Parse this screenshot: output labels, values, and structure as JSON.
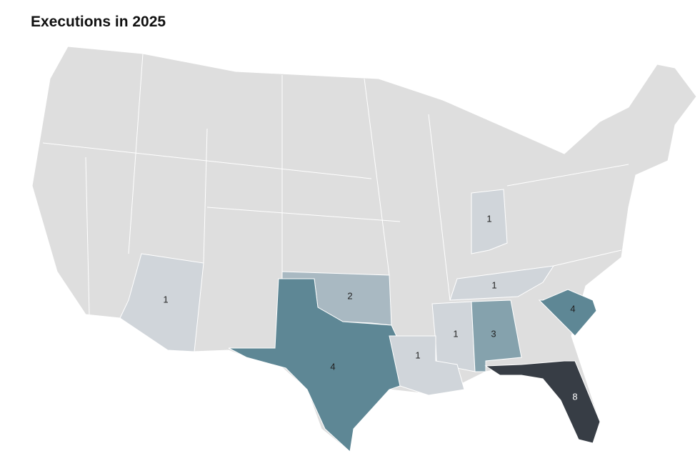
{
  "chart_data": {
    "type": "choropleth",
    "title": "Executions in 2025",
    "regions": [
      {
        "value": 1,
        "color": "#d0d5da"
      },
      {
        "value": 1,
        "color": "#d0d5da"
      },
      {
        "value": 2,
        "color": "#a9b9c2"
      },
      {
        "value": 4,
        "color": "#5e8795"
      },
      {
        "value": 1,
        "color": "#d0d5da"
      },
      {
        "value": 4,
        "color": "#5e8795"
      },
      {
        "value": 1,
        "color": "#d0d5da"
      },
      {
        "value": 3,
        "color": "#85a2ad"
      },
      {
        "value": 1,
        "color": "#d0d5da"
      },
      {
        "value": 8,
        "color": "#373d45"
      }
    ]
  }
}
